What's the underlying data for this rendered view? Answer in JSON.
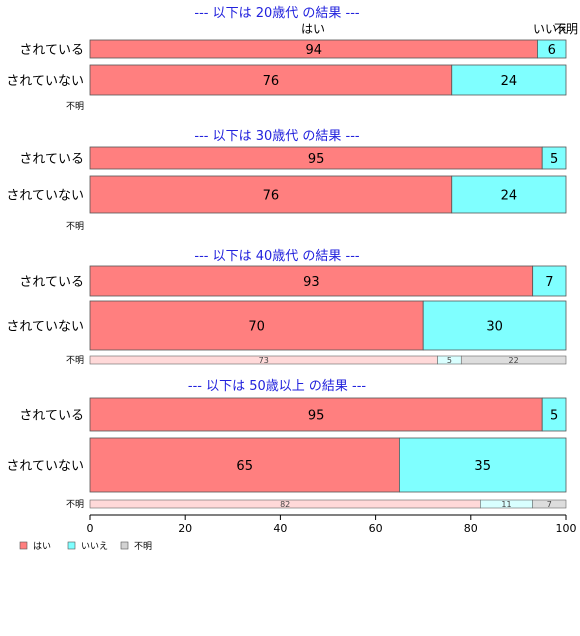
{
  "chart_data": {
    "type": "bar",
    "orientation": "horizontal",
    "stacked": "percent",
    "xlim": [
      0,
      100
    ],
    "x_ticks": [
      0,
      20,
      40,
      60,
      80,
      100
    ],
    "series_names": [
      "はい",
      "いいえ",
      "不明"
    ],
    "colors": {
      "yes": "#ff7f7f",
      "no": "#7fffff",
      "unknown": "#d3d3d3",
      "yes_light": "#ffd9d9",
      "no_light": "#d9ffff",
      "unknown_light": "#dddddd",
      "title": "#2222dd"
    },
    "legend": {
      "position": "bottom-left",
      "items": [
        "はい",
        "いいえ",
        "不明"
      ]
    },
    "top_labels": {
      "yes": "はい",
      "no": "いいえ",
      "unknown": "不明"
    },
    "panels": [
      {
        "title": "--- 以下は 20歳代 の結果 ---",
        "rows": [
          {
            "label": "されている",
            "values": [
              94,
              6,
              0
            ]
          },
          {
            "label": "されていない",
            "values": [
              76,
              24,
              0
            ]
          }
        ],
        "unknown_row": {
          "label": "不明",
          "values": []
        }
      },
      {
        "title": "--- 以下は 30歳代 の結果 ---",
        "rows": [
          {
            "label": "されている",
            "values": [
              95,
              5,
              0
            ]
          },
          {
            "label": "されていない",
            "values": [
              76,
              24,
              0
            ]
          }
        ],
        "unknown_row": {
          "label": "不明",
          "values": []
        }
      },
      {
        "title": "--- 以下は 40歳代 の結果 ---",
        "rows": [
          {
            "label": "されている",
            "values": [
              93,
              7,
              0
            ]
          },
          {
            "label": "されていない",
            "values": [
              70,
              30,
              0
            ]
          }
        ],
        "unknown_row": {
          "label": "不明",
          "values": [
            73,
            5,
            22
          ]
        }
      },
      {
        "title": "--- 以下は 50歳以上 の結果 ---",
        "rows": [
          {
            "label": "されている",
            "values": [
              95,
              5,
              0
            ]
          },
          {
            "label": "されていない",
            "values": [
              65,
              35,
              0
            ]
          }
        ],
        "unknown_row": {
          "label": "不明",
          "values": [
            82,
            11,
            7
          ]
        }
      }
    ]
  }
}
